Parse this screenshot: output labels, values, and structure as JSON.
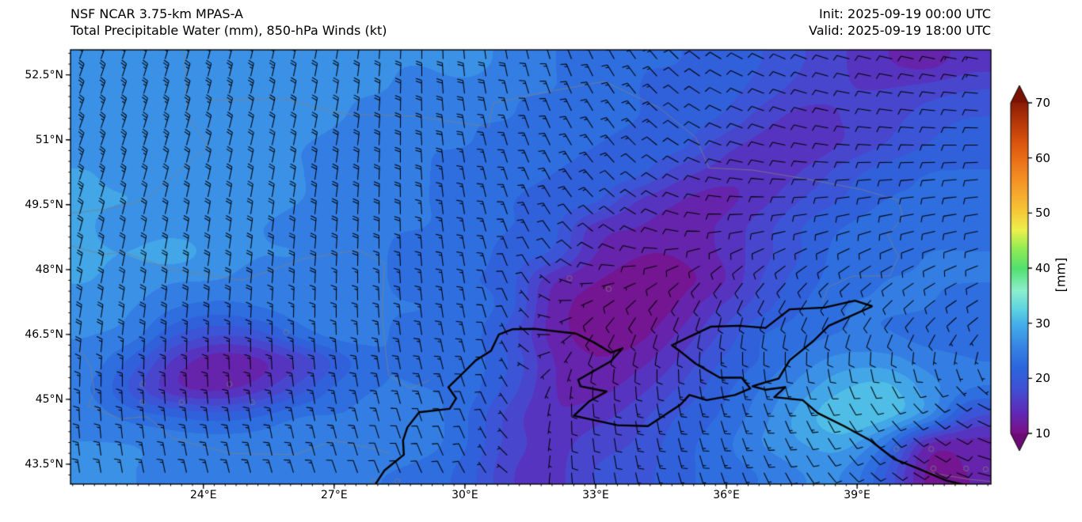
{
  "header": {
    "title": "NSF NCAR 3.75-km MPAS-A",
    "subtitle": "Total Precipitable Water (mm), 850-hPa Winds (kt)",
    "init_label": "Init: 2025-09-19 00:00 UTC",
    "valid_label": "Valid: 2025-09-19 18:00 UTC"
  },
  "axes": {
    "lon_range": [
      20.95,
      42.07
    ],
    "lat_range": [
      43.04,
      53.08
    ],
    "minor_tick_deg": 0.25,
    "lat_ticks": [
      {
        "label": "52.5°N",
        "lat": 52.5
      },
      {
        "label": "51°N",
        "lat": 51
      },
      {
        "label": "49.5°N",
        "lat": 49.5
      },
      {
        "label": "48°N",
        "lat": 48
      },
      {
        "label": "46.5°N",
        "lat": 46.5
      },
      {
        "label": "45°N",
        "lat": 45
      },
      {
        "label": "43.5°N",
        "lat": 43.5
      }
    ],
    "lon_ticks": [
      {
        "label": "24°E",
        "lon": 24
      },
      {
        "label": "27°E",
        "lon": 27
      },
      {
        "label": "30°E",
        "lon": 30
      },
      {
        "label": "33°E",
        "lon": 33
      },
      {
        "label": "36°E",
        "lon": 36
      },
      {
        "label": "39°E",
        "lon": 39
      }
    ]
  },
  "colorbar": {
    "title": "[mm]",
    "range": [
      10,
      70
    ],
    "extend": "both",
    "ticks": [
      {
        "label": "10",
        "value": 10
      },
      {
        "label": "20",
        "value": 20
      },
      {
        "label": "30",
        "value": 30
      },
      {
        "label": "40",
        "value": 40
      },
      {
        "label": "50",
        "value": 50
      },
      {
        "label": "60",
        "value": 60
      },
      {
        "label": "70",
        "value": 70
      }
    ],
    "under_color": "#6d0b76",
    "over_color": "#7a1203",
    "stops": [
      [
        10,
        "#7b0f85"
      ],
      [
        14,
        "#5e2bb8"
      ],
      [
        18,
        "#414fd4"
      ],
      [
        22,
        "#2b66dd"
      ],
      [
        26,
        "#3786e5"
      ],
      [
        30,
        "#45b0e8"
      ],
      [
        33,
        "#63d8e0"
      ],
      [
        36,
        "#8ceecc"
      ],
      [
        40,
        "#52e06e"
      ],
      [
        44,
        "#9aec52"
      ],
      [
        47,
        "#eef04c"
      ],
      [
        51,
        "#f6c235"
      ],
      [
        55,
        "#f49b28"
      ],
      [
        59,
        "#ee761b"
      ],
      [
        63,
        "#d9530e"
      ],
      [
        67,
        "#b03309"
      ],
      [
        70,
        "#8c1d05"
      ]
    ]
  },
  "chart_data": {
    "type": "heatmap",
    "title": "Total Precipitable Water (mm), 850-hPa Winds (kt)",
    "units": "mm",
    "contour_interval": 2,
    "tpw_grid": {
      "lons": [
        21,
        22,
        23,
        24,
        25,
        26,
        27,
        28,
        29,
        30,
        31,
        32,
        33,
        34,
        35,
        36,
        37,
        38,
        39,
        40,
        41,
        42
      ],
      "lats": [
        53,
        52.33,
        51.67,
        51,
        50.33,
        49.67,
        49,
        48.33,
        47.67,
        47,
        46.33,
        45.67,
        45,
        44.33,
        43.67,
        43
      ],
      "values_mm": [
        [
          27,
          27,
          27,
          27,
          27,
          26,
          26,
          26,
          26,
          27,
          25,
          24,
          23,
          22,
          22,
          21,
          20,
          18,
          16,
          14,
          13,
          15
        ],
        [
          27,
          27,
          27,
          27,
          26,
          26,
          26,
          26,
          25,
          25,
          24,
          24,
          23,
          22,
          21,
          21,
          19,
          17,
          16,
          16,
          17,
          18
        ],
        [
          27,
          27,
          26,
          26,
          26,
          27,
          26,
          25,
          25,
          24,
          24,
          23,
          23,
          22,
          21,
          20,
          17,
          15,
          16,
          17,
          19,
          20
        ],
        [
          27,
          26,
          26,
          26,
          26,
          26,
          25,
          25,
          24,
          24,
          23,
          23,
          22,
          21,
          21,
          17,
          15,
          14,
          16,
          18,
          20,
          21
        ],
        [
          28,
          27,
          27,
          27,
          26,
          26,
          25,
          25,
          24,
          23,
          23,
          22,
          21,
          21,
          17,
          15,
          14,
          16,
          19,
          21,
          22,
          22
        ],
        [
          28,
          28,
          27,
          28,
          27,
          26,
          25,
          24,
          24,
          23,
          22,
          21,
          21,
          16,
          14,
          13,
          15,
          18,
          20,
          22,
          22,
          23
        ],
        [
          28,
          27,
          27,
          27,
          26,
          25,
          25,
          24,
          24,
          23,
          22,
          21,
          15,
          14,
          13,
          14,
          17,
          20,
          22,
          23,
          23,
          23
        ],
        [
          28,
          28,
          29,
          27,
          26,
          26,
          24,
          24,
          23,
          23,
          21,
          20,
          14,
          12,
          12,
          14,
          17,
          20,
          23,
          23,
          24,
          24
        ],
        [
          28,
          27,
          26,
          26,
          25,
          25,
          24,
          24,
          23,
          22,
          21,
          14,
          12,
          11,
          11,
          13,
          18,
          21,
          23,
          24,
          24,
          24
        ],
        [
          27,
          26,
          24,
          23,
          24,
          25,
          25,
          24,
          24,
          23,
          21,
          13,
          11,
          10,
          12,
          16,
          19,
          22,
          24,
          24,
          24,
          23
        ],
        [
          26,
          25,
          20,
          18,
          19,
          23,
          25,
          24,
          23,
          23,
          19,
          13,
          11,
          11,
          14,
          18,
          22,
          23,
          24,
          24,
          23,
          23
        ],
        [
          25,
          21,
          15,
          12,
          13,
          16,
          21,
          24,
          23,
          23,
          20,
          14,
          12,
          13,
          16,
          20,
          22,
          25,
          27,
          27,
          25,
          24
        ],
        [
          24,
          19,
          14,
          13,
          15,
          19,
          23,
          24,
          24,
          23,
          19,
          14,
          13,
          15,
          18,
          21,
          24,
          27,
          30,
          31,
          27,
          24
        ],
        [
          25,
          23,
          22,
          21,
          22,
          24,
          24,
          25,
          25,
          22,
          17,
          14,
          15,
          17,
          20,
          22,
          25,
          29,
          32,
          31,
          27,
          18
        ],
        [
          26,
          26,
          25,
          25,
          25,
          26,
          26,
          26,
          25,
          22,
          17,
          15,
          17,
          18,
          21,
          23,
          26,
          28,
          29,
          24,
          13,
          13
        ],
        [
          26,
          26,
          25,
          25,
          25,
          25,
          24,
          24,
          23,
          21,
          16,
          15,
          18,
          19,
          21,
          23,
          24,
          26,
          26,
          20,
          11,
          12
        ]
      ]
    },
    "wind_barbs": {
      "units": "kt",
      "lons": [
        21,
        24,
        27,
        30,
        33,
        36,
        39,
        42
      ],
      "lats": [
        53,
        51,
        49,
        47,
        45,
        43
      ],
      "dir_from_deg": [
        [
          20,
          15,
          10,
          355,
          335,
          300,
          285,
          280
        ],
        [
          20,
          15,
          10,
          350,
          325,
          290,
          275,
          270
        ],
        [
          15,
          10,
          5,
          350,
          310,
          265,
          255,
          260
        ],
        [
          10,
          5,
          0,
          350,
          230,
          195,
          215,
          235
        ],
        [
          0,
          355,
          350,
          340,
          175,
          165,
          150,
          115
        ],
        [
          350,
          345,
          340,
          330,
          170,
          160,
          130,
          100
        ]
      ],
      "speed_kt": [
        [
          25,
          25,
          22,
          20,
          15,
          12,
          12,
          13
        ],
        [
          25,
          22,
          20,
          18,
          14,
          12,
          10,
          12
        ],
        [
          22,
          20,
          20,
          16,
          12,
          10,
          10,
          12
        ],
        [
          20,
          18,
          16,
          14,
          8,
          12,
          10,
          10
        ],
        [
          15,
          15,
          14,
          12,
          12,
          15,
          12,
          8
        ],
        [
          15,
          14,
          12,
          10,
          12,
          14,
          10,
          8
        ]
      ]
    }
  },
  "map": {
    "coastlines": [
      [
        [
          27.95,
          43.04
        ],
        [
          28.15,
          43.35
        ],
        [
          28.6,
          43.72
        ],
        [
          28.58,
          44.05
        ],
        [
          28.68,
          44.35
        ],
        [
          28.95,
          44.7
        ],
        [
          29.65,
          44.78
        ],
        [
          29.8,
          45.02
        ],
        [
          29.62,
          45.28
        ],
        [
          29.85,
          45.5
        ],
        [
          30.25,
          45.9
        ],
        [
          30.6,
          46.12
        ],
        [
          30.78,
          46.5
        ],
        [
          31.1,
          46.62
        ],
        [
          31.6,
          46.63
        ],
        [
          32.0,
          46.58
        ],
        [
          32.55,
          46.52
        ]
      ],
      [
        [
          32.55,
          46.52
        ],
        [
          32.95,
          46.32
        ],
        [
          33.35,
          46.08
        ],
        [
          33.62,
          46.18
        ],
        [
          33.35,
          45.88
        ],
        [
          32.6,
          45.45
        ],
        [
          32.65,
          45.3
        ],
        [
          33.25,
          45.18
        ],
        [
          32.85,
          44.95
        ],
        [
          32.5,
          44.62
        ],
        [
          33.5,
          44.4
        ],
        [
          34.2,
          44.38
        ],
        [
          34.95,
          44.88
        ],
        [
          35.15,
          45.1
        ],
        [
          35.55,
          44.98
        ],
        [
          36.2,
          45.1
        ],
        [
          36.55,
          45.25
        ],
        [
          36.35,
          45.5
        ],
        [
          35.85,
          45.5
        ],
        [
          35.3,
          45.82
        ],
        [
          34.95,
          46.1
        ],
        [
          34.75,
          46.25
        ],
        [
          35.1,
          46.42
        ],
        [
          35.65,
          46.68
        ],
        [
          36.3,
          46.7
        ],
        [
          36.9,
          46.65
        ],
        [
          37.45,
          47.08
        ],
        [
          38.25,
          47.12
        ],
        [
          38.95,
          47.28
        ],
        [
          39.35,
          47.15
        ]
      ],
      [
        [
          39.35,
          47.15
        ],
        [
          38.8,
          46.9
        ],
        [
          38.35,
          46.7
        ],
        [
          38.0,
          46.35
        ],
        [
          37.45,
          45.9
        ],
        [
          37.2,
          45.48
        ],
        [
          36.85,
          45.38
        ],
        [
          36.6,
          45.3
        ],
        [
          36.9,
          45.22
        ],
        [
          37.35,
          45.28
        ],
        [
          37.1,
          45.05
        ],
        [
          37.75,
          44.98
        ],
        [
          38.1,
          44.68
        ],
        [
          38.7,
          44.38
        ],
        [
          39.3,
          44.05
        ],
        [
          39.85,
          43.62
        ],
        [
          40.4,
          43.4
        ],
        [
          41.05,
          43.12
        ],
        [
          41.65,
          42.98
        ]
      ]
    ],
    "borders": [
      [
        [
          23.55,
          53.08
        ],
        [
          23.6,
          52.3
        ],
        [
          23.65,
          51.55
        ],
        [
          24.1,
          50.85
        ],
        [
          23.6,
          50.4
        ],
        [
          22.65,
          49.6
        ],
        [
          21.8,
          49.4
        ],
        [
          20.95,
          49.3
        ]
      ],
      [
        [
          24.1,
          51.9
        ],
        [
          25.8,
          51.95
        ],
        [
          27.2,
          51.6
        ],
        [
          28.8,
          51.55
        ],
        [
          30.55,
          51.3
        ],
        [
          30.65,
          51.85
        ],
        [
          31.85,
          52.1
        ],
        [
          33.2,
          52.35
        ],
        [
          34.45,
          51.75
        ],
        [
          35.3,
          51.05
        ],
        [
          35.6,
          50.35
        ],
        [
          36.6,
          50.3
        ],
        [
          37.8,
          50.1
        ],
        [
          39.1,
          49.85
        ],
        [
          39.95,
          49.6
        ],
        [
          40.05,
          49.2
        ],
        [
          39.7,
          48.8
        ],
        [
          39.95,
          48.3
        ],
        [
          39.75,
          47.85
        ],
        [
          38.9,
          47.85
        ],
        [
          38.35,
          47.6
        ],
        [
          38.2,
          47.25
        ]
      ],
      [
        [
          21.1,
          46.25
        ],
        [
          21.4,
          45.8
        ],
        [
          21.5,
          45.15
        ],
        [
          21.35,
          44.85
        ],
        [
          22.1,
          44.55
        ],
        [
          22.7,
          44.6
        ],
        [
          23.3,
          44.1
        ],
        [
          24.6,
          43.75
        ],
        [
          26.1,
          43.72
        ],
        [
          27.0,
          44.05
        ],
        [
          27.95,
          43.85
        ],
        [
          28.25,
          43.75
        ]
      ],
      [
        [
          20.95,
          48.55
        ],
        [
          21.7,
          48.35
        ],
        [
          22.15,
          48.4
        ],
        [
          23.3,
          48.0
        ],
        [
          24.9,
          47.75
        ],
        [
          26.3,
          48.25
        ],
        [
          27.55,
          48.45
        ],
        [
          28.15,
          48.15
        ],
        [
          28.1,
          46.9
        ],
        [
          28.25,
          45.55
        ],
        [
          28.75,
          45.25
        ],
        [
          29.2,
          45.45
        ]
      ],
      [
        [
          39.95,
          43.55
        ],
        [
          40.7,
          43.3
        ],
        [
          41.55,
          43.15
        ],
        [
          42.07,
          43.1
        ]
      ]
    ],
    "lakes": [
      [
        22.6,
        45.35
      ],
      [
        24.6,
        45.35
      ],
      [
        22.6,
        44.93
      ],
      [
        23.5,
        44.93
      ],
      [
        25.12,
        44.93
      ],
      [
        25.9,
        46.55
      ],
      [
        27.9,
        43.1
      ],
      [
        28.45,
        43.1
      ],
      [
        32.4,
        47.8
      ],
      [
        33.3,
        47.55
      ],
      [
        39.9,
        43.85
      ],
      [
        40.7,
        43.85
      ],
      [
        40.75,
        43.4
      ],
      [
        41.5,
        43.4
      ],
      [
        41.95,
        43.38
      ]
    ]
  }
}
